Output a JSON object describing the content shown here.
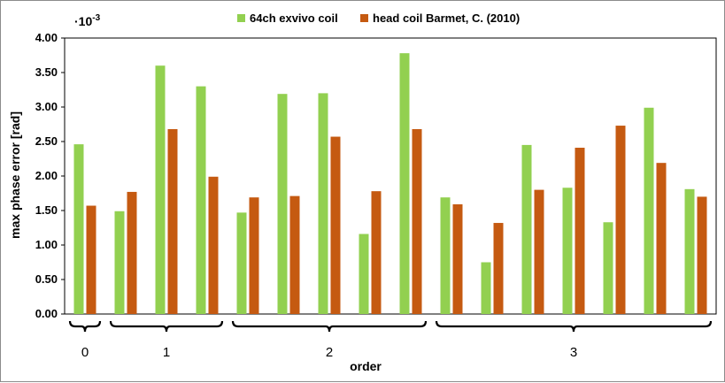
{
  "chart_data": {
    "type": "bar",
    "multiplier": "·10",
    "multiplier_exp": "-3",
    "xlabel": "order",
    "ylabel": "max phase error [rad]",
    "ylim": [
      0,
      4
    ],
    "yticks": [
      "0.00",
      "0.50",
      "1.00",
      "1.50",
      "2.00",
      "2.50",
      "3.00",
      "3.50",
      "4.00"
    ],
    "grid": false,
    "legend_position": "top-center",
    "series": [
      {
        "name": "64ch exvivo coil",
        "color": "#92d050",
        "values": [
          2.46,
          1.49,
          3.6,
          3.3,
          1.47,
          3.19,
          3.2,
          1.16,
          3.78,
          1.69,
          0.75,
          2.45,
          1.83,
          1.33,
          2.99,
          1.81
        ]
      },
      {
        "name": "head coil Barmet, C. (2010)",
        "color": "#c55a11",
        "values": [
          1.57,
          1.77,
          2.68,
          1.99,
          1.69,
          1.71,
          2.57,
          1.78,
          2.68,
          1.59,
          1.32,
          1.8,
          2.41,
          2.73,
          2.19,
          1.7
        ]
      }
    ],
    "groups": [
      {
        "label": "0",
        "start": 0,
        "end": 0
      },
      {
        "label": "1",
        "start": 1,
        "end": 3
      },
      {
        "label": "2",
        "start": 4,
        "end": 8
      },
      {
        "label": "3",
        "start": 9,
        "end": 15
      }
    ]
  }
}
